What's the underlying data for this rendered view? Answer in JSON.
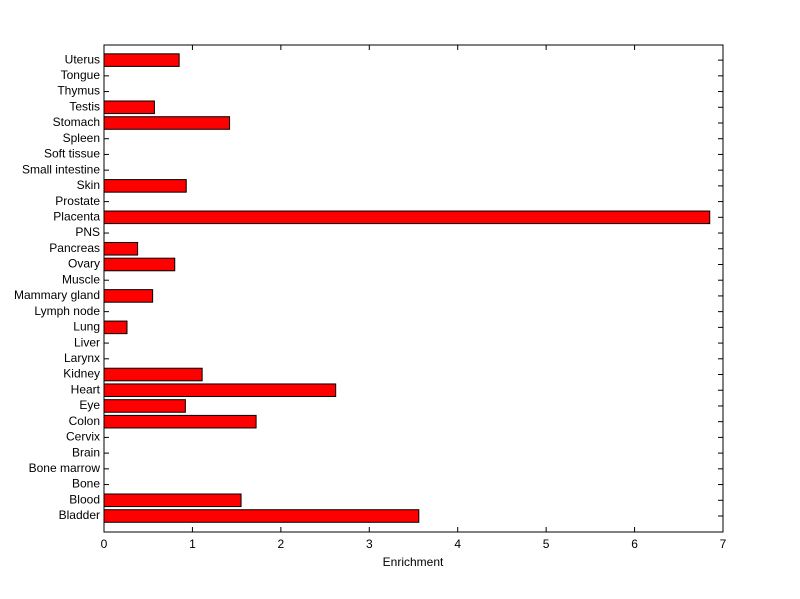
{
  "chart_data": {
    "type": "barh",
    "xlabel": "Enrichment",
    "categories": [
      "Bladder",
      "Blood",
      "Bone",
      "Bone marrow",
      "Brain",
      "Cervix",
      "Colon",
      "Eye",
      "Heart",
      "Kidney",
      "Larynx",
      "Liver",
      "Lung",
      "Lymph node",
      "Mammary gland",
      "Muscle",
      "Ovary",
      "Pancreas",
      "PNS",
      "Placenta",
      "Prostate",
      "Skin",
      "Small intestine",
      "Soft tissue",
      "Spleen",
      "Stomach",
      "Testis",
      "Thymus",
      "Tongue",
      "Uterus"
    ],
    "values": [
      3.56,
      1.55,
      0,
      0,
      0,
      0,
      1.72,
      0.92,
      2.62,
      1.11,
      0,
      0,
      0.26,
      0,
      0.55,
      0,
      0.8,
      0.38,
      0,
      6.85,
      0,
      0.93,
      0,
      0,
      0,
      1.42,
      0.57,
      0,
      0,
      0.85
    ],
    "color": "#ff0000",
    "xlim": [
      0,
      7
    ],
    "xticks": [
      0,
      1,
      2,
      3,
      4,
      5,
      6,
      7
    ]
  }
}
